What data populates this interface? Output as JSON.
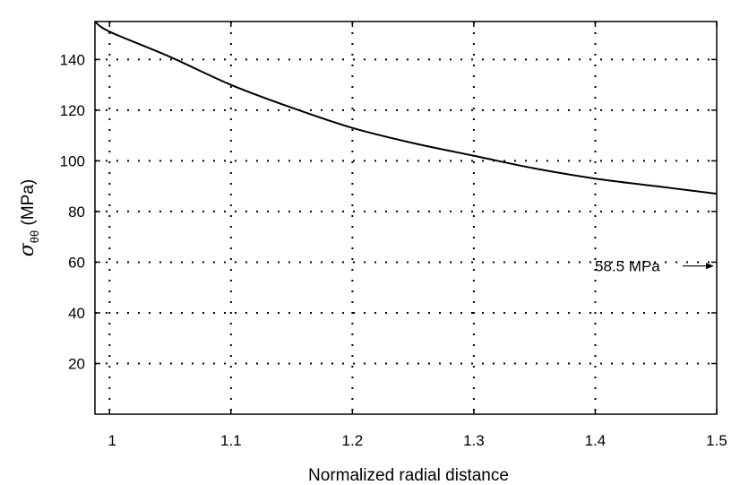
{
  "chart_data": {
    "type": "line",
    "title": "",
    "xlabel": "Normalized radial distance",
    "ylabel": {
      "symbol": "σ",
      "subscript": "θθ",
      "unit": " (MPa)"
    },
    "xlim": [
      0.988,
      1.5
    ],
    "ylim": [
      0,
      155
    ],
    "x_ticks": [
      1,
      1.1,
      1.2,
      1.3,
      1.4,
      1.5
    ],
    "x_tick_labels": [
      "1",
      "1.1",
      "1.2",
      "1.3",
      "1.4",
      "1.5"
    ],
    "y_ticks": [
      20,
      40,
      60,
      80,
      100,
      120,
      140
    ],
    "y_tick_labels": [
      "20",
      "40",
      "60",
      "80",
      "100",
      "120",
      "140"
    ],
    "grid": true,
    "series": [
      {
        "color": "#000000",
        "x": [
          0.988,
          1.0,
          1.05,
          1.1,
          1.15,
          1.2,
          1.25,
          1.3,
          1.35,
          1.4,
          1.45,
          1.5
        ],
        "y": [
          155,
          151,
          141,
          130,
          121,
          113,
          107,
          102,
          97,
          93,
          90,
          87
        ]
      }
    ],
    "annotations": [
      {
        "text": "58.5 MPa",
        "y": 58.5,
        "arrow": "right"
      }
    ]
  }
}
